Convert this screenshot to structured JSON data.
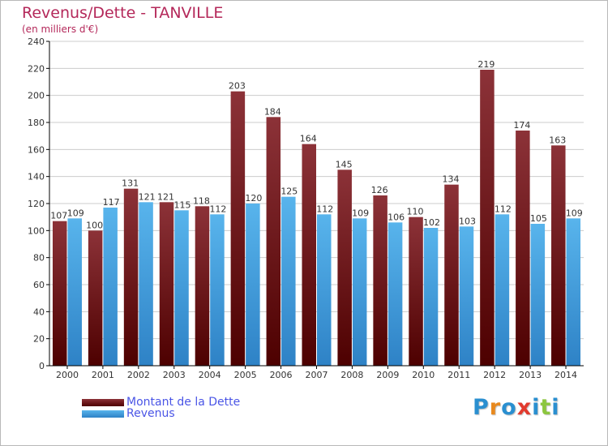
{
  "title": "Revenus/Dette - TANVILLE",
  "subtitle": "(en milliers d'€)",
  "logo": {
    "text": "Proxiti",
    "colors": [
      "#2a8fd0",
      "#e8891e",
      "#2a8fd0",
      "#e23a2e",
      "#2a8fd0",
      "#8cc63f",
      "#2a8fd0"
    ]
  },
  "colors": {
    "debt_top": "#8c3238",
    "debt_bottom": "#4d0000",
    "revenue_top": "#58b4ec",
    "revenue_bottom": "#2e82c6",
    "axis": "#000000",
    "grid": "#cccccc"
  },
  "legend": [
    {
      "label": "Montant de la Dette",
      "series": 0
    },
    {
      "label": "Revenus",
      "series": 1
    }
  ],
  "chart_data": {
    "type": "bar",
    "categories": [
      "2000",
      "2001",
      "2002",
      "2003",
      "2004",
      "2005",
      "2006",
      "2007",
      "2008",
      "2009",
      "2010",
      "2011",
      "2012",
      "2013",
      "2014"
    ],
    "series": [
      {
        "name": "Montant de la Dette",
        "values": [
          107,
          100,
          131,
          121,
          118,
          203,
          184,
          164,
          145,
          126,
          110,
          134,
          219,
          174,
          163
        ]
      },
      {
        "name": "Revenus",
        "values": [
          109,
          117,
          121,
          115,
          112,
          120,
          125,
          112,
          109,
          106,
          102,
          103,
          112,
          105,
          109
        ]
      }
    ],
    "ylim": [
      0,
      240
    ],
    "yticks": [
      0,
      20,
      40,
      60,
      80,
      100,
      120,
      140,
      160,
      180,
      200,
      220,
      240
    ],
    "grid": true,
    "legend_position": "bottom-left"
  }
}
